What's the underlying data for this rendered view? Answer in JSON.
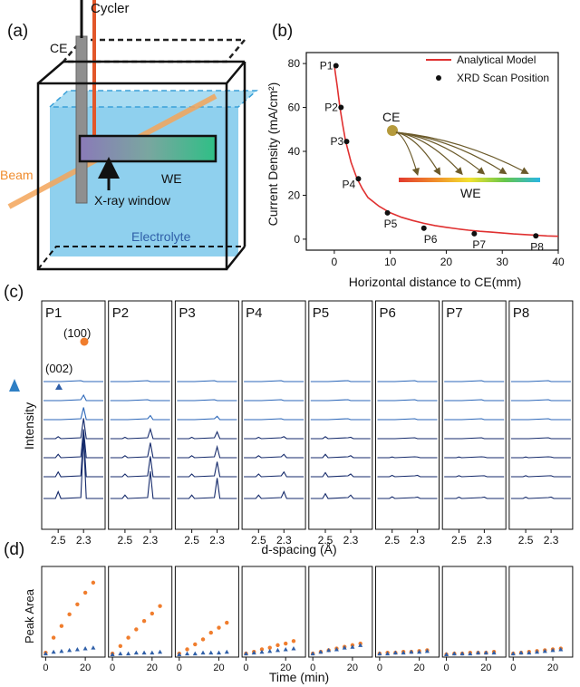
{
  "panel_labels": {
    "a": "(a)",
    "b": "(b)",
    "c": "(c)",
    "d": "(d)"
  },
  "schematic": {
    "cycler": "Cycler",
    "ce": "CE",
    "we": "WE",
    "beam": "Beam",
    "xray_window": "X-ray window",
    "electrolyte": "Electrolyte",
    "colors": {
      "beam": "#f4a55a",
      "electrolyte": "#8fd0ee",
      "lead_ce": "#111111",
      "lead_we": "#e2572a",
      "electrode_ce": "#8f8f8f"
    }
  },
  "current_density_chart": {
    "chart_data": {
      "type": "line",
      "xlabel": "Horizontal distance to CE(mm)",
      "ylabel": "Current Density (mA/cm²)",
      "xlim": [
        -5,
        40
      ],
      "ylim": [
        -5,
        85
      ],
      "xticks": [
        0,
        10,
        20,
        30,
        40
      ],
      "yticks": [
        0,
        20,
        40,
        60,
        80
      ],
      "series": [
        {
          "name": "Analytical Model",
          "kind": "line",
          "color": "#e03030",
          "x": [
            0,
            0.5,
            1,
            1.5,
            2,
            3,
            4,
            5,
            6,
            8,
            10,
            12,
            14,
            16,
            18,
            20,
            22,
            24,
            26,
            28,
            30,
            32,
            34,
            36,
            38,
            40
          ],
          "y": [
            79,
            70,
            60,
            52,
            45,
            35,
            28,
            23,
            19,
            15,
            12,
            10,
            8.5,
            7.2,
            6.2,
            5.4,
            4.7,
            4.1,
            3.6,
            3.2,
            2.8,
            2.4,
            2.1,
            1.8,
            1.5,
            1.3
          ]
        },
        {
          "name": "XRD Scan Position",
          "kind": "scatter",
          "color": "#111111",
          "points": [
            {
              "label": "P1",
              "x": 0.3,
              "y": 79
            },
            {
              "label": "P2",
              "x": 1.2,
              "y": 60
            },
            {
              "label": "P3",
              "x": 2.2,
              "y": 44.5
            },
            {
              "label": "P4",
              "x": 4.3,
              "y": 27.5
            },
            {
              "label": "P5",
              "x": 9.5,
              "y": 12
            },
            {
              "label": "P6",
              "x": 16,
              "y": 5
            },
            {
              "label": "P7",
              "x": 25,
              "y": 2.5
            },
            {
              "label": "P8",
              "x": 36,
              "y": 1.5
            }
          ]
        }
      ],
      "legend": "top-right"
    },
    "inset": {
      "ce": "CE",
      "we": "WE"
    }
  },
  "xrd_panels": {
    "chart_data": {
      "type": "line",
      "xlabel": "d-spacing (Å)",
      "ylabel": "Intensity",
      "x_ticks": [
        "2.5",
        "2.3"
      ],
      "peak_labels": {
        "p002": "(002)",
        "p100": "(100)"
      },
      "panels": [
        {
          "name": "P1",
          "peak_100": [
            0,
            0.08,
            0.18,
            0.3,
            0.42,
            0.62,
            0.9
          ],
          "peak_002": [
            0,
            0,
            0,
            0.03,
            0.05,
            0.07,
            0.1
          ]
        },
        {
          "name": "P2",
          "peak_100": [
            0,
            0,
            0.06,
            0.14,
            0.22,
            0.3,
            0.4
          ],
          "peak_002": [
            0,
            0,
            0,
            0.02,
            0.03,
            0.04,
            0.05
          ]
        },
        {
          "name": "P3",
          "peak_100": [
            0,
            0,
            0.05,
            0.1,
            0.16,
            0.22,
            0.3
          ],
          "peak_002": [
            0,
            0,
            0,
            0.02,
            0.03,
            0.04,
            0.05
          ]
        },
        {
          "name": "P4",
          "peak_100": [
            0,
            0,
            0,
            0.03,
            0.05,
            0.07,
            0.1
          ],
          "peak_002": [
            0,
            0,
            0,
            0.02,
            0.03,
            0.04,
            0.05
          ]
        },
        {
          "name": "P5",
          "peak_100": [
            0,
            0,
            0,
            0.02,
            0.03,
            0.04,
            0.05
          ],
          "peak_002": [
            0,
            0,
            0,
            0.03,
            0.05,
            0.06,
            0.07
          ]
        },
        {
          "name": "P6",
          "peak_100": [
            0,
            0,
            0,
            0,
            0.01,
            0.02,
            0.02
          ],
          "peak_002": [
            0,
            0,
            0,
            0,
            0.01,
            0.02,
            0.025
          ]
        },
        {
          "name": "P7",
          "peak_100": [
            0,
            0,
            0,
            0,
            0.01,
            0.015,
            0.02
          ],
          "peak_002": [
            0,
            0,
            0,
            0,
            0.01,
            0.015,
            0.02
          ]
        },
        {
          "name": "P8",
          "peak_100": [
            0,
            0,
            0,
            0,
            0.01,
            0.015,
            0.02
          ],
          "peak_002": [
            0,
            0,
            0,
            0,
            0.01,
            0.015,
            0.02
          ]
        }
      ]
    }
  },
  "peak_area_panels": {
    "chart_data": {
      "type": "scatter",
      "xlabel": "Time (min)",
      "ylabel": "Peak Area",
      "x_ticks": [
        0,
        20
      ],
      "xlim": [
        -2,
        30
      ],
      "ylim": [
        0,
        1
      ],
      "series_colors": {
        "peak_100": "#f07d2d",
        "peak_002": "#2f5fa8"
      },
      "time": [
        0,
        4,
        8,
        12,
        16,
        20,
        24
      ],
      "panels": [
        {
          "name": "P1",
          "peak_100": [
            0.02,
            0.2,
            0.34,
            0.48,
            0.6,
            0.74,
            0.86
          ],
          "peak_002": [
            0.01,
            0.03,
            0.04,
            0.05,
            0.06,
            0.07,
            0.08
          ]
        },
        {
          "name": "P2",
          "peak_100": [
            0.01,
            0.1,
            0.2,
            0.3,
            0.4,
            0.49,
            0.58
          ],
          "peak_002": [
            0.0,
            0.01,
            0.01,
            0.02,
            0.02,
            0.02,
            0.03
          ]
        },
        {
          "name": "P3",
          "peak_100": [
            0.01,
            0.06,
            0.12,
            0.18,
            0.26,
            0.32,
            0.38
          ],
          "peak_002": [
            0.0,
            0.01,
            0.01,
            0.02,
            0.02,
            0.02,
            0.03
          ]
        },
        {
          "name": "P4",
          "peak_100": [
            0.01,
            0.03,
            0.06,
            0.08,
            0.11,
            0.13,
            0.16
          ],
          "peak_002": [
            0.01,
            0.02,
            0.03,
            0.04,
            0.05,
            0.06,
            0.07
          ]
        },
        {
          "name": "P5",
          "peak_100": [
            0.01,
            0.03,
            0.05,
            0.07,
            0.09,
            0.11,
            0.13
          ],
          "peak_002": [
            0.01,
            0.03,
            0.05,
            0.06,
            0.08,
            0.09,
            0.11
          ]
        },
        {
          "name": "P6",
          "peak_100": [
            0.01,
            0.02,
            0.02,
            0.03,
            0.03,
            0.04,
            0.05
          ],
          "peak_002": [
            0.01,
            0.01,
            0.02,
            0.02,
            0.03,
            0.03,
            0.04
          ]
        },
        {
          "name": "P7",
          "peak_100": [
            0.0,
            0.01,
            0.01,
            0.02,
            0.02,
            0.02,
            0.03
          ],
          "peak_002": [
            0.0,
            0.01,
            0.01,
            0.01,
            0.02,
            0.02,
            0.02
          ]
        },
        {
          "name": "P8",
          "peak_100": [
            0.01,
            0.02,
            0.03,
            0.04,
            0.05,
            0.06,
            0.07
          ],
          "peak_002": [
            0.01,
            0.02,
            0.02,
            0.03,
            0.04,
            0.05,
            0.06
          ]
        }
      ]
    }
  }
}
